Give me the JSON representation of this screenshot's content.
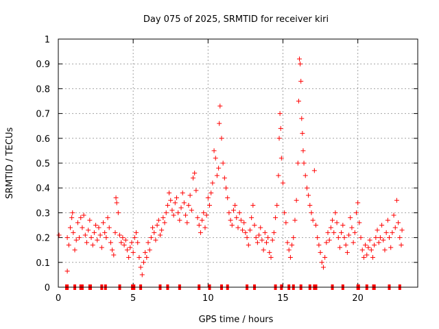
{
  "chart_data": {
    "type": "scatter",
    "title": "Day 075 of 2025, SRMTID for receiver kiri",
    "xlabel": "GPS time / hours",
    "ylabel": "SRMTID / TECUs",
    "xlim": [
      0,
      24
    ],
    "ylim": [
      0,
      1
    ],
    "xticks": [
      0,
      5,
      10,
      15,
      20
    ],
    "yticks": [
      0,
      0.1,
      0.2,
      0.3,
      0.4,
      0.5,
      0.6,
      0.7,
      0.8,
      0.9,
      1
    ],
    "ytick_labels": [
      "0",
      "0.1",
      "0.2",
      "0.3",
      "0.4",
      "0.5",
      "0.6",
      "0.7",
      "0.8",
      "0.9",
      "1"
    ],
    "grid": true,
    "marker": "+",
    "color": "#ff0000",
    "series": [
      {
        "name": "SRMTID",
        "points": [
          [
            0.05,
            0.21
          ],
          [
            0.6,
            0.065
          ],
          [
            0.6,
            0.2
          ],
          [
            0.7,
            0.17
          ],
          [
            0.8,
            0.24
          ],
          [
            0.9,
            0.28
          ],
          [
            0.95,
            0.3
          ],
          [
            1.0,
            0.22
          ],
          [
            1.1,
            0.15
          ],
          [
            1.2,
            0.19
          ],
          [
            1.3,
            0.26
          ],
          [
            1.4,
            0.2
          ],
          [
            1.5,
            0.28
          ],
          [
            1.6,
            0.24
          ],
          [
            1.7,
            0.29
          ],
          [
            1.8,
            0.21
          ],
          [
            1.9,
            0.18
          ],
          [
            2.0,
            0.23
          ],
          [
            2.1,
            0.27
          ],
          [
            2.2,
            0.2
          ],
          [
            2.3,
            0.17
          ],
          [
            2.4,
            0.22
          ],
          [
            2.5,
            0.25
          ],
          [
            2.6,
            0.19
          ],
          [
            2.7,
            0.24
          ],
          [
            2.8,
            0.21
          ],
          [
            2.9,
            0.16
          ],
          [
            3.0,
            0.26
          ],
          [
            3.1,
            0.22
          ],
          [
            3.2,
            0.2
          ],
          [
            3.3,
            0.28
          ],
          [
            3.4,
            0.24
          ],
          [
            3.5,
            0.18
          ],
          [
            3.6,
            0.15
          ],
          [
            3.7,
            0.13
          ],
          [
            3.8,
            0.22
          ],
          [
            3.85,
            0.36
          ],
          [
            3.9,
            0.34
          ],
          [
            4.0,
            0.3
          ],
          [
            4.1,
            0.21
          ],
          [
            4.2,
            0.18
          ],
          [
            4.3,
            0.2
          ],
          [
            4.4,
            0.17
          ],
          [
            4.5,
            0.19
          ],
          [
            4.6,
            0.15
          ],
          [
            4.7,
            0.12
          ],
          [
            4.8,
            0.16
          ],
          [
            4.9,
            0.18
          ],
          [
            5.0,
            0.14
          ],
          [
            5.1,
            0.2
          ],
          [
            5.2,
            0.22
          ],
          [
            5.3,
            0.18
          ],
          [
            5.4,
            0.12
          ],
          [
            5.5,
            0.08
          ],
          [
            5.6,
            0.05
          ],
          [
            5.7,
            0.1
          ],
          [
            5.8,
            0.14
          ],
          [
            5.9,
            0.12
          ],
          [
            6.0,
            0.18
          ],
          [
            6.1,
            0.15
          ],
          [
            6.2,
            0.2
          ],
          [
            6.3,
            0.24
          ],
          [
            6.4,
            0.22
          ],
          [
            6.5,
            0.19
          ],
          [
            6.6,
            0.25
          ],
          [
            6.7,
            0.27
          ],
          [
            6.8,
            0.21
          ],
          [
            6.9,
            0.23
          ],
          [
            7.0,
            0.28
          ],
          [
            7.1,
            0.26
          ],
          [
            7.2,
            0.3
          ],
          [
            7.3,
            0.33
          ],
          [
            7.4,
            0.38
          ],
          [
            7.5,
            0.35
          ],
          [
            7.6,
            0.31
          ],
          [
            7.7,
            0.29
          ],
          [
            7.8,
            0.34
          ],
          [
            7.9,
            0.36
          ],
          [
            8.0,
            0.3
          ],
          [
            8.1,
            0.27
          ],
          [
            8.2,
            0.32
          ],
          [
            8.3,
            0.38
          ],
          [
            8.4,
            0.34
          ],
          [
            8.5,
            0.29
          ],
          [
            8.6,
            0.26
          ],
          [
            8.7,
            0.33
          ],
          [
            8.8,
            0.37
          ],
          [
            8.9,
            0.31
          ],
          [
            9.0,
            0.44
          ],
          [
            9.1,
            0.46
          ],
          [
            9.2,
            0.39
          ],
          [
            9.3,
            0.28
          ],
          [
            9.4,
            0.25
          ],
          [
            9.5,
            0.22
          ],
          [
            9.6,
            0.27
          ],
          [
            9.7,
            0.3
          ],
          [
            9.8,
            0.24
          ],
          [
            9.9,
            0.29
          ],
          [
            10.0,
            0.36
          ],
          [
            10.1,
            0.33
          ],
          [
            10.2,
            0.38
          ],
          [
            10.3,
            0.42
          ],
          [
            10.4,
            0.55
          ],
          [
            10.5,
            0.52
          ],
          [
            10.6,
            0.45
          ],
          [
            10.7,
            0.48
          ],
          [
            10.75,
            0.66
          ],
          [
            10.8,
            0.73
          ],
          [
            10.9,
            0.6
          ],
          [
            11.0,
            0.5
          ],
          [
            11.1,
            0.44
          ],
          [
            11.2,
            0.4
          ],
          [
            11.3,
            0.36
          ],
          [
            11.4,
            0.3
          ],
          [
            11.5,
            0.27
          ],
          [
            11.6,
            0.25
          ],
          [
            11.7,
            0.31
          ],
          [
            11.8,
            0.33
          ],
          [
            11.9,
            0.28
          ],
          [
            12.0,
            0.24
          ],
          [
            12.1,
            0.3
          ],
          [
            12.2,
            0.27
          ],
          [
            12.3,
            0.23
          ],
          [
            12.4,
            0.26
          ],
          [
            12.5,
            0.22
          ],
          [
            12.6,
            0.2
          ],
          [
            12.7,
            0.17
          ],
          [
            12.8,
            0.23
          ],
          [
            12.9,
            0.28
          ],
          [
            13.0,
            0.33
          ],
          [
            13.1,
            0.25
          ],
          [
            13.2,
            0.2
          ],
          [
            13.3,
            0.18
          ],
          [
            13.4,
            0.21
          ],
          [
            13.5,
            0.24
          ],
          [
            13.6,
            0.19
          ],
          [
            13.7,
            0.15
          ],
          [
            13.8,
            0.22
          ],
          [
            13.9,
            0.18
          ],
          [
            14.0,
            0.2
          ],
          [
            14.1,
            0.14
          ],
          [
            14.2,
            0.12
          ],
          [
            14.3,
            0.19
          ],
          [
            14.4,
            0.22
          ],
          [
            14.5,
            0.28
          ],
          [
            14.6,
            0.33
          ],
          [
            14.7,
            0.45
          ],
          [
            14.75,
            0.6
          ],
          [
            14.8,
            0.7
          ],
          [
            14.85,
            0.64
          ],
          [
            14.9,
            0.52
          ],
          [
            15.0,
            0.42
          ],
          [
            15.1,
            0.3
          ],
          [
            15.2,
            0.26
          ],
          [
            15.3,
            0.18
          ],
          [
            15.4,
            0.15
          ],
          [
            15.5,
            0.12
          ],
          [
            15.6,
            0.17
          ],
          [
            15.7,
            0.2
          ],
          [
            15.8,
            0.27
          ],
          [
            15.9,
            0.35
          ],
          [
            16.0,
            0.5
          ],
          [
            16.05,
            0.75
          ],
          [
            16.1,
            0.92
          ],
          [
            16.15,
            0.9
          ],
          [
            16.2,
            0.83
          ],
          [
            16.25,
            0.68
          ],
          [
            16.3,
            0.62
          ],
          [
            16.35,
            0.55
          ],
          [
            16.4,
            0.5
          ],
          [
            16.5,
            0.45
          ],
          [
            16.6,
            0.4
          ],
          [
            16.7,
            0.37
          ],
          [
            16.8,
            0.33
          ],
          [
            16.9,
            0.3
          ],
          [
            17.0,
            0.27
          ],
          [
            17.1,
            0.47
          ],
          [
            17.2,
            0.25
          ],
          [
            17.3,
            0.2
          ],
          [
            17.4,
            0.17
          ],
          [
            17.5,
            0.14
          ],
          [
            17.6,
            0.1
          ],
          [
            17.7,
            0.08
          ],
          [
            17.8,
            0.12
          ],
          [
            17.9,
            0.18
          ],
          [
            18.0,
            0.22
          ],
          [
            18.1,
            0.19
          ],
          [
            18.2,
            0.24
          ],
          [
            18.3,
            0.27
          ],
          [
            18.4,
            0.22
          ],
          [
            18.5,
            0.3
          ],
          [
            18.6,
            0.26
          ],
          [
            18.7,
            0.2
          ],
          [
            18.8,
            0.16
          ],
          [
            18.9,
            0.22
          ],
          [
            19.0,
            0.25
          ],
          [
            19.1,
            0.2
          ],
          [
            19.2,
            0.17
          ],
          [
            19.3,
            0.14
          ],
          [
            19.4,
            0.21
          ],
          [
            19.5,
            0.28
          ],
          [
            19.6,
            0.24
          ],
          [
            19.7,
            0.18
          ],
          [
            19.8,
            0.22
          ],
          [
            19.9,
            0.3
          ],
          [
            20.0,
            0.34
          ],
          [
            20.1,
            0.26
          ],
          [
            20.2,
            0.2
          ],
          [
            20.3,
            0.15
          ],
          [
            20.4,
            0.12
          ],
          [
            20.5,
            0.17
          ],
          [
            20.6,
            0.13
          ],
          [
            20.7,
            0.16
          ],
          [
            20.8,
            0.19
          ],
          [
            20.9,
            0.15
          ],
          [
            21.0,
            0.12
          ],
          [
            21.1,
            0.17
          ],
          [
            21.2,
            0.2
          ],
          [
            21.3,
            0.23
          ],
          [
            21.4,
            0.18
          ],
          [
            21.5,
            0.2
          ],
          [
            21.6,
            0.25
          ],
          [
            21.7,
            0.19
          ],
          [
            21.8,
            0.15
          ],
          [
            21.9,
            0.22
          ],
          [
            22.0,
            0.27
          ],
          [
            22.1,
            0.2
          ],
          [
            22.2,
            0.16
          ],
          [
            22.3,
            0.22
          ],
          [
            22.4,
            0.29
          ],
          [
            22.5,
            0.24
          ],
          [
            22.6,
            0.35
          ],
          [
            22.7,
            0.26
          ],
          [
            22.8,
            0.2
          ],
          [
            22.9,
            0.17
          ],
          [
            22.95,
            0.23
          ]
        ]
      }
    ],
    "baseline_marks_x": [
      0.55,
      0.6,
      1.1,
      1.5,
      1.6,
      2.1,
      2.15,
      2.9,
      3.15,
      4.1,
      4.95,
      5.05,
      5.5,
      6.8,
      7.3,
      8.1,
      9.4,
      10.1,
      10.9,
      11.3,
      12.6,
      13.1,
      14.5,
      14.9,
      15.4,
      15.7,
      16.2,
      16.8,
      17.1,
      17.2,
      18.3,
      19.0,
      20.0,
      20.05,
      20.6,
      21.05,
      21.1,
      22.1,
      22.8
    ]
  }
}
